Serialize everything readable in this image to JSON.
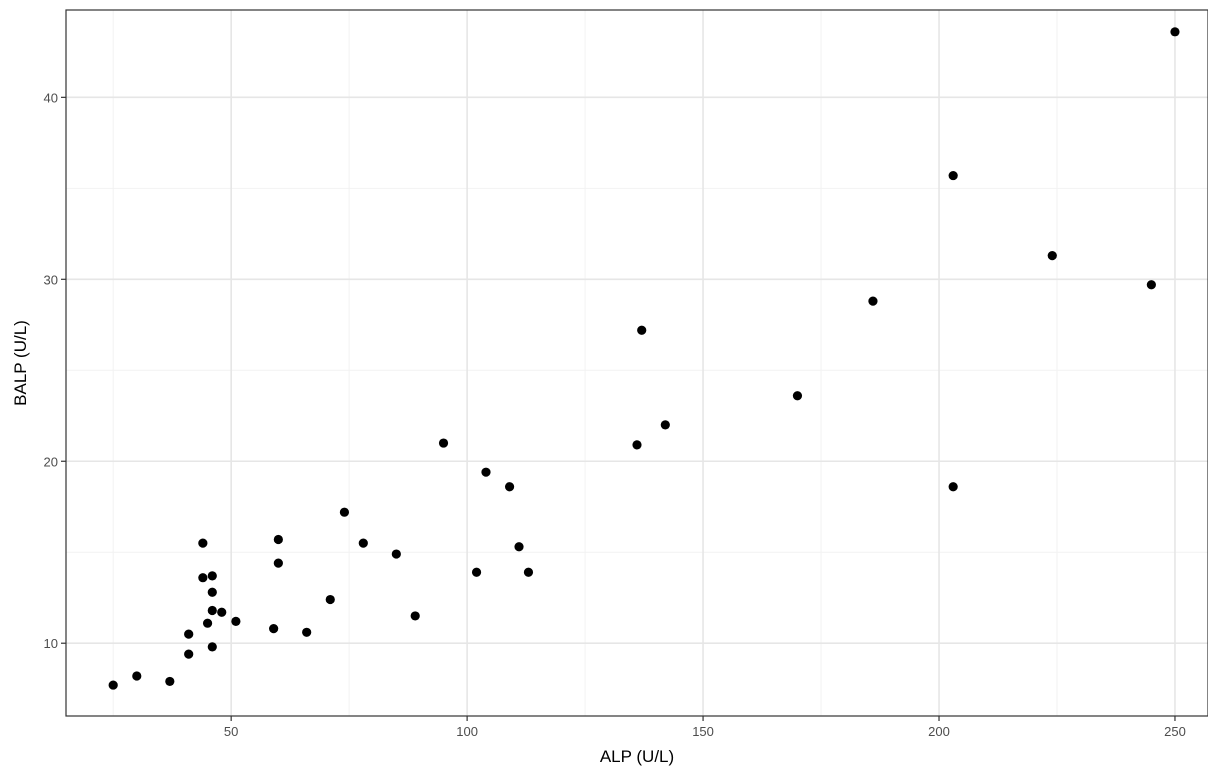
{
  "chart_data": {
    "type": "scatter",
    "title": "",
    "xlabel": "ALP (U/L)",
    "ylabel": "BALP (U/L)",
    "xlim": [
      15,
      257
    ],
    "ylim": [
      6,
      44.8
    ],
    "x_ticks": [
      50,
      100,
      150,
      200,
      250
    ],
    "y_ticks": [
      10,
      20,
      30,
      40
    ],
    "x_minor_ticks": [
      25,
      75,
      125,
      175,
      225
    ],
    "y_minor_ticks": [
      15,
      25,
      35
    ],
    "grid": true,
    "legend": "none",
    "point_color": "#000000",
    "points": [
      {
        "x": 25,
        "y": 7.7
      },
      {
        "x": 30,
        "y": 8.2
      },
      {
        "x": 37,
        "y": 7.9
      },
      {
        "x": 41,
        "y": 10.5
      },
      {
        "x": 41,
        "y": 9.4
      },
      {
        "x": 44,
        "y": 15.5
      },
      {
        "x": 44,
        "y": 13.6
      },
      {
        "x": 45,
        "y": 11.1
      },
      {
        "x": 46,
        "y": 13.7
      },
      {
        "x": 46,
        "y": 12.8
      },
      {
        "x": 46,
        "y": 11.8
      },
      {
        "x": 46,
        "y": 9.8
      },
      {
        "x": 48,
        "y": 11.7
      },
      {
        "x": 51,
        "y": 11.2
      },
      {
        "x": 59,
        "y": 10.8
      },
      {
        "x": 60,
        "y": 15.7
      },
      {
        "x": 60,
        "y": 14.4
      },
      {
        "x": 66,
        "y": 10.6
      },
      {
        "x": 71,
        "y": 12.4
      },
      {
        "x": 74,
        "y": 17.2
      },
      {
        "x": 78,
        "y": 15.5
      },
      {
        "x": 85,
        "y": 14.9
      },
      {
        "x": 89,
        "y": 11.5
      },
      {
        "x": 95,
        "y": 21.0
      },
      {
        "x": 102,
        "y": 13.9
      },
      {
        "x": 104,
        "y": 19.4
      },
      {
        "x": 109,
        "y": 18.6
      },
      {
        "x": 111,
        "y": 15.3
      },
      {
        "x": 113,
        "y": 13.9
      },
      {
        "x": 136,
        "y": 20.9
      },
      {
        "x": 137,
        "y": 27.2
      },
      {
        "x": 142,
        "y": 22.0
      },
      {
        "x": 170,
        "y": 23.6
      },
      {
        "x": 186,
        "y": 28.8
      },
      {
        "x": 203,
        "y": 35.7
      },
      {
        "x": 203,
        "y": 18.6
      },
      {
        "x": 224,
        "y": 31.3
      },
      {
        "x": 245,
        "y": 29.7
      },
      {
        "x": 250,
        "y": 43.6
      }
    ]
  }
}
